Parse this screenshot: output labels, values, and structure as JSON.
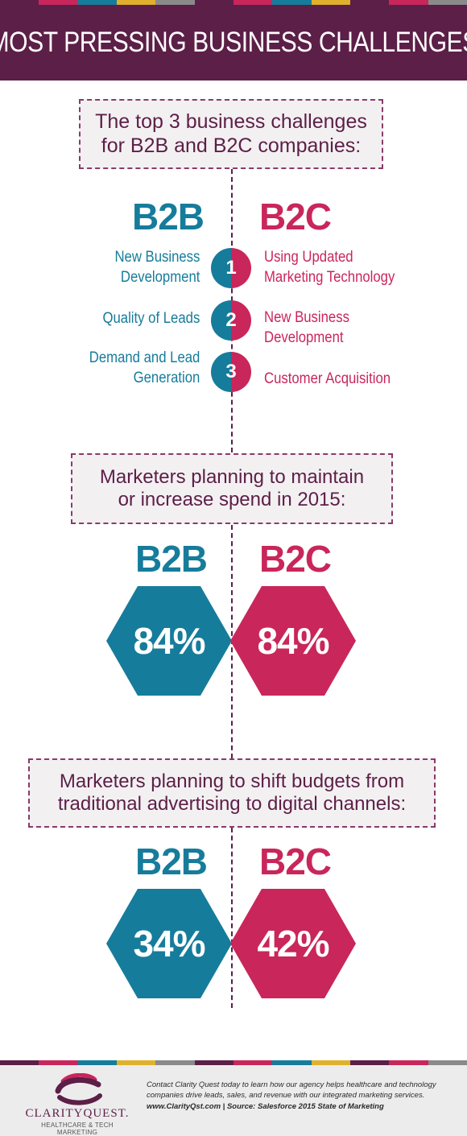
{
  "title": "MOST PRESSING BUSINESS CHALLENGES",
  "stripe_colors": [
    "#5c1f47",
    "#c9265b",
    "#167c9b",
    "#e0b12c",
    "#8a8a8a",
    "#5c1f47",
    "#c9265b",
    "#167c9b",
    "#e0b12c",
    "#5c1f47",
    "#c9265b",
    "#8a8a8a"
  ],
  "colors": {
    "b2b": "#167c9b",
    "b2c": "#c9265b",
    "brand": "#5c1f47"
  },
  "section1": {
    "question": [
      "The top 3 business challenges",
      "for B2B and B2C companies:"
    ],
    "b2b_label": "B2B",
    "b2c_label": "B2C",
    "rows": [
      {
        "rank": "1",
        "b2b": [
          "New Business",
          "Development"
        ],
        "b2c": [
          "Using Updated",
          "Marketing Technology"
        ]
      },
      {
        "rank": "2",
        "b2b": [
          "Quality of Leads"
        ],
        "b2c": [
          "New Business",
          "Development"
        ]
      },
      {
        "rank": "3",
        "b2b": [
          "Demand and Lead",
          "Generation"
        ],
        "b2c": [
          "Customer Acquisition"
        ]
      }
    ]
  },
  "section2": {
    "question": [
      "Marketers planning to maintain",
      "or increase spend in 2015:"
    ],
    "b2b_label": "B2B",
    "b2c_label": "B2C",
    "b2b_value": "84%",
    "b2c_value": "84%"
  },
  "section3": {
    "question": [
      "Marketers planning to shift budgets from",
      "traditional advertising to digital channels:"
    ],
    "b2b_label": "B2B",
    "b2c_label": "B2C",
    "b2b_value": "34%",
    "b2c_value": "42%"
  },
  "footer": {
    "logo_text": "CLARITYQUEST.",
    "logo_sub": "HEALTHCARE & TECH MARKETING",
    "text_lines": [
      "Contact Clarity Quest today to learn how our agency helps healthcare and technology",
      "companies drive leads, sales, and revenue with our integrated marketing services."
    ],
    "source_line": "www.ClarityQst.com | Source: Salesforce 2015 State of Marketing"
  }
}
